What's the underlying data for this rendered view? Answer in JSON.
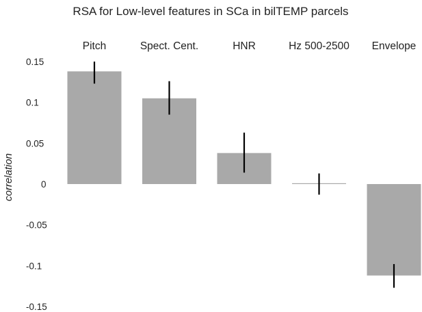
{
  "chart_data": {
    "type": "bar",
    "title": "RSA for Low-level features in SCa in bilTEMP parcels",
    "categories": [
      "Pitch",
      "Spect. Cent.",
      "HNR",
      "Hz 500-2500",
      "Envelope"
    ],
    "values": [
      0.138,
      0.105,
      0.038,
      0.001,
      -0.112
    ],
    "error_low": [
      0.123,
      0.085,
      0.014,
      -0.013,
      -0.127
    ],
    "error_high": [
      0.15,
      0.126,
      0.063,
      0.013,
      -0.098
    ],
    "ylabel": "correlation",
    "xlabel": "",
    "ylim": [
      -0.15,
      0.15
    ],
    "yticks": [
      0.15,
      0.1,
      0.05,
      0,
      -0.05,
      -0.1,
      -0.15
    ],
    "ytick_labels": [
      "0.15",
      "0.1",
      "0.05",
      "0",
      "-0.05",
      "-0.1",
      "-0.15"
    ],
    "grid": false,
    "legend": "none",
    "colors": {
      "bar": "#a9a9a9",
      "error": "#000000",
      "text": "#222222"
    }
  }
}
